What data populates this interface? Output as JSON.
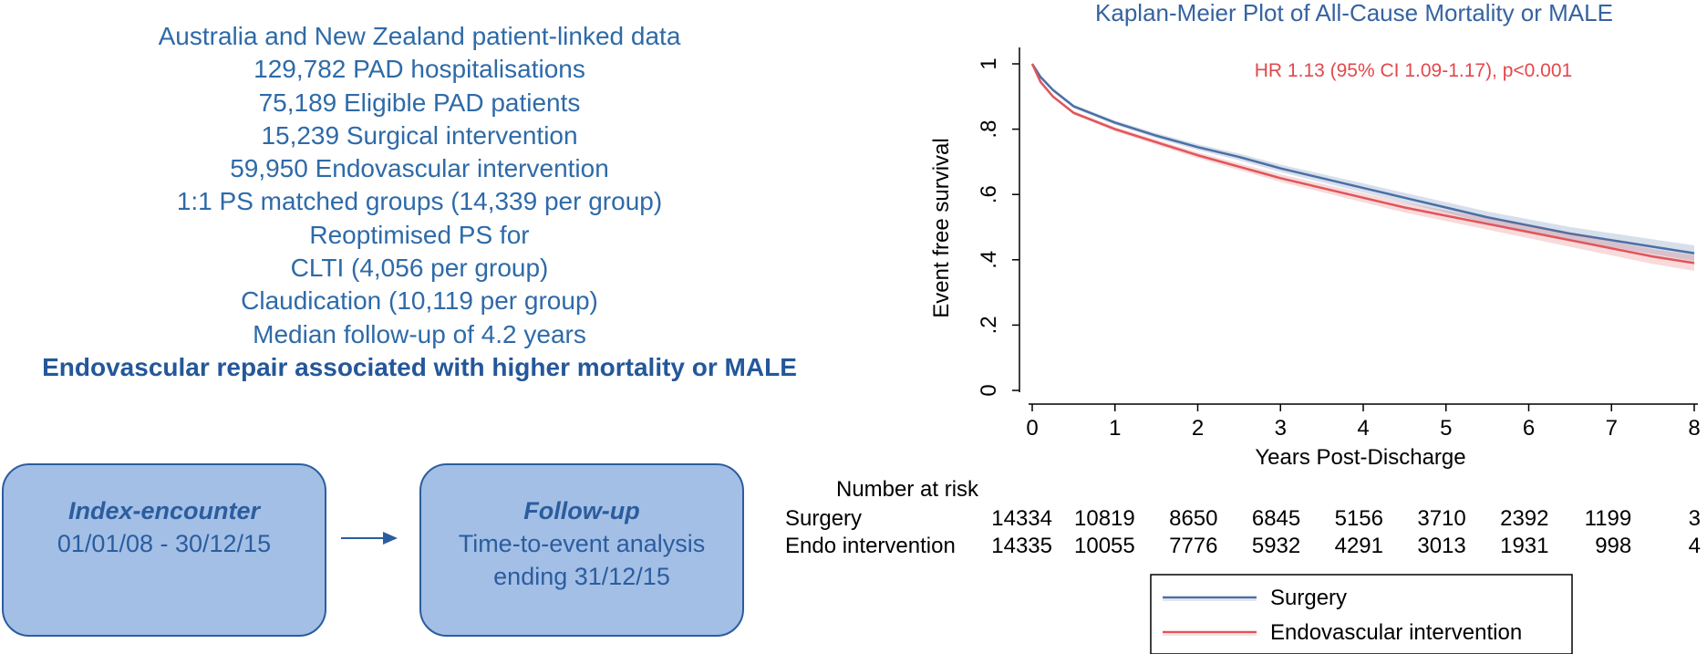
{
  "summary": {
    "lines": [
      "Australia and New Zealand patient-linked data",
      "129,782 PAD hospitalisations",
      "75,189 Eligible PAD patients",
      "15,239 Surgical intervention",
      "59,950 Endovascular intervention",
      "1:1 PS matched groups (14,339 per group)",
      "Reoptimised PS for",
      "CLTI (4,056 per group)",
      "Claudication (10,119 per group)",
      "Median follow-up of 4.2 years"
    ],
    "conclusion": "Endovascular repair associated with higher mortality or MALE"
  },
  "flow": {
    "index": {
      "title": "Index-encounter",
      "line1": "01/01/08 - 30/12/15"
    },
    "follow": {
      "title": "Follow-up",
      "line1": "Time-to-event analysis",
      "line2": "ending 31/12/15"
    }
  },
  "colors": {
    "surgery": "#4a6fa5",
    "endo": "#e0555a",
    "text_blue": "#2e6aa8",
    "box_fill": "#a3bfe6"
  },
  "chart_data": {
    "type": "line",
    "title": "Kaplan-Meier Plot of All-Cause Mortality or MALE",
    "xlabel": "Years Post-Discharge",
    "ylabel": "Event free survival",
    "xlim": [
      0,
      8
    ],
    "ylim": [
      0,
      1
    ],
    "xticks": [
      "0",
      "1",
      "2",
      "3",
      "4",
      "5",
      "6",
      "7",
      "8"
    ],
    "yticks": [
      "0",
      ".2",
      ".4",
      ".6",
      ".8",
      "1"
    ],
    "annotation": "HR 1.13 (95% CI 1.09-1.17), p<0.001",
    "grid": false,
    "legend_position": "bottom",
    "x": [
      0,
      0.1,
      0.25,
      0.5,
      1,
      1.5,
      2,
      2.5,
      3,
      3.5,
      4,
      4.5,
      5,
      5.5,
      6,
      6.5,
      7,
      7.5,
      8
    ],
    "series": [
      {
        "name": "Surgery",
        "values": [
          1.0,
          0.96,
          0.92,
          0.87,
          0.82,
          0.78,
          0.745,
          0.715,
          0.68,
          0.65,
          0.62,
          0.59,
          0.56,
          0.53,
          0.505,
          0.48,
          0.46,
          0.44,
          0.42
        ]
      },
      {
        "name": "Endovascular intervention",
        "values": [
          1.0,
          0.945,
          0.9,
          0.85,
          0.8,
          0.76,
          0.72,
          0.685,
          0.65,
          0.62,
          0.59,
          0.56,
          0.535,
          0.51,
          0.485,
          0.46,
          0.435,
          0.41,
          0.39
        ]
      }
    ],
    "risk_table": {
      "title": "Number at risk",
      "rows": [
        {
          "label": "Surgery",
          "values": [
            "14334",
            "10819",
            "8650",
            "6845",
            "5156",
            "3710",
            "2392",
            "1199",
            "3"
          ]
        },
        {
          "label": "Endo intervention",
          "values": [
            "14335",
            "10055",
            "7776",
            "5932",
            "4291",
            "3013",
            "1931",
            "998",
            "4"
          ]
        }
      ]
    }
  }
}
